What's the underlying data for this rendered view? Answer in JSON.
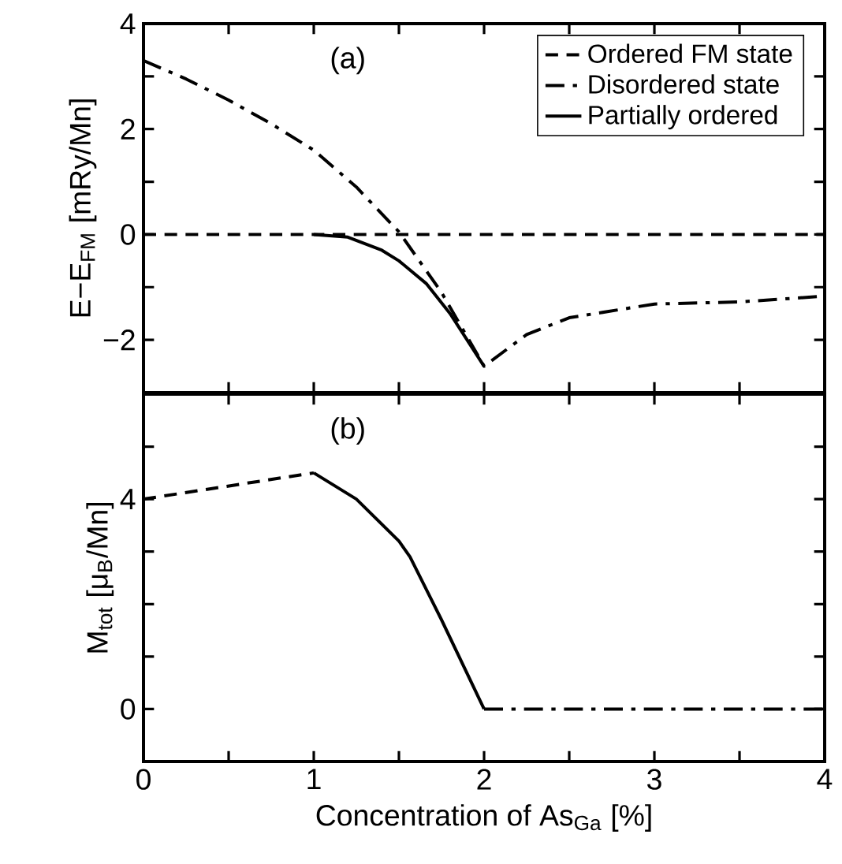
{
  "chart_data": [
    {
      "type": "line",
      "ylabel": "E−E$_{FM}$ [mRy/Mn]",
      "annotations": [
        "(a)"
      ],
      "xlim": [
        0,
        4
      ],
      "ylim": [
        -3,
        4
      ],
      "xticks": [
        0,
        {
          "value": 0.5,
          "label": null
        },
        1,
        {
          "value": 1.5,
          "label": null
        },
        2,
        {
          "value": 2.5,
          "label": null
        },
        3,
        {
          "value": 3.5,
          "label": null
        },
        4
      ],
      "yticks": [
        {
          "value": -2,
          "label": "−2"
        },
        0,
        2,
        4,
        {
          "value": -3,
          "label": null
        },
        {
          "value": -1,
          "label": null
        },
        {
          "value": 1,
          "label": null
        },
        {
          "value": 3,
          "label": null
        }
      ],
      "tick_labels": "y",
      "legend": "top right",
      "grid": false,
      "marker": "none",
      "series": [
        {
          "name": "Ordered FM state",
          "color": "#000000",
          "line_style": "dashed",
          "x": [
            0,
            4
          ],
          "values": [
            0,
            0
          ]
        },
        {
          "name": "Disordered state",
          "color": "#000000",
          "line_style": "dashdot",
          "x": [
            0,
            0.25,
            0.5,
            0.75,
            1,
            1.25,
            1.5,
            1.75,
            2,
            2.25,
            2.5,
            3,
            3.5,
            4
          ],
          "values": [
            3.3,
            2.95,
            2.55,
            2.1,
            1.6,
            0.9,
            0.05,
            -1.1,
            -2.5,
            -1.9,
            -1.58,
            -1.32,
            -1.28,
            -1.17
          ]
        },
        {
          "name": "Partially ordered",
          "color": "#000000",
          "line_style": "solid",
          "x": [
            1,
            1.2,
            1.4,
            1.5,
            1.66,
            1.8,
            2
          ],
          "values": [
            0,
            -0.05,
            -0.3,
            -0.5,
            -0.93,
            -1.5,
            -2.5
          ]
        }
      ]
    },
    {
      "type": "line",
      "xlabel": "Concentration of As$_{Ga}$ [%]",
      "ylabel": "M$_{tot}$ [μ$_{B}$/Mn]",
      "annotations": [
        "(b)"
      ],
      "xlim": [
        0,
        4
      ],
      "ylim": [
        -1,
        6
      ],
      "xticks": [
        0,
        {
          "value": 0.5,
          "label": null
        },
        1,
        {
          "value": 1.5,
          "label": null
        },
        2,
        {
          "value": 2.5,
          "label": null
        },
        3,
        {
          "value": 3.5,
          "label": null
        },
        4
      ],
      "yticks": [
        0,
        4,
        {
          "value": 1,
          "label": null
        },
        {
          "value": 2,
          "label": null
        },
        {
          "value": 3,
          "label": null
        },
        {
          "value": 5,
          "label": null
        }
      ],
      "grid": false,
      "legend": false,
      "marker": "none",
      "series": [
        {
          "color": "#000000",
          "line_style": "dashed",
          "x": [
            0,
            1
          ],
          "values": [
            4,
            4.5
          ]
        },
        {
          "color": "#000000",
          "line_style": "solid",
          "x": [
            1,
            1.25,
            1.5,
            1.565,
            1.75,
            2
          ],
          "values": [
            4.5,
            4.0,
            3.2,
            2.9,
            1.7,
            0
          ]
        },
        {
          "color": "#000000",
          "line_style": "dashdot",
          "x": [
            2,
            4
          ],
          "values": [
            0,
            0
          ]
        }
      ]
    }
  ]
}
